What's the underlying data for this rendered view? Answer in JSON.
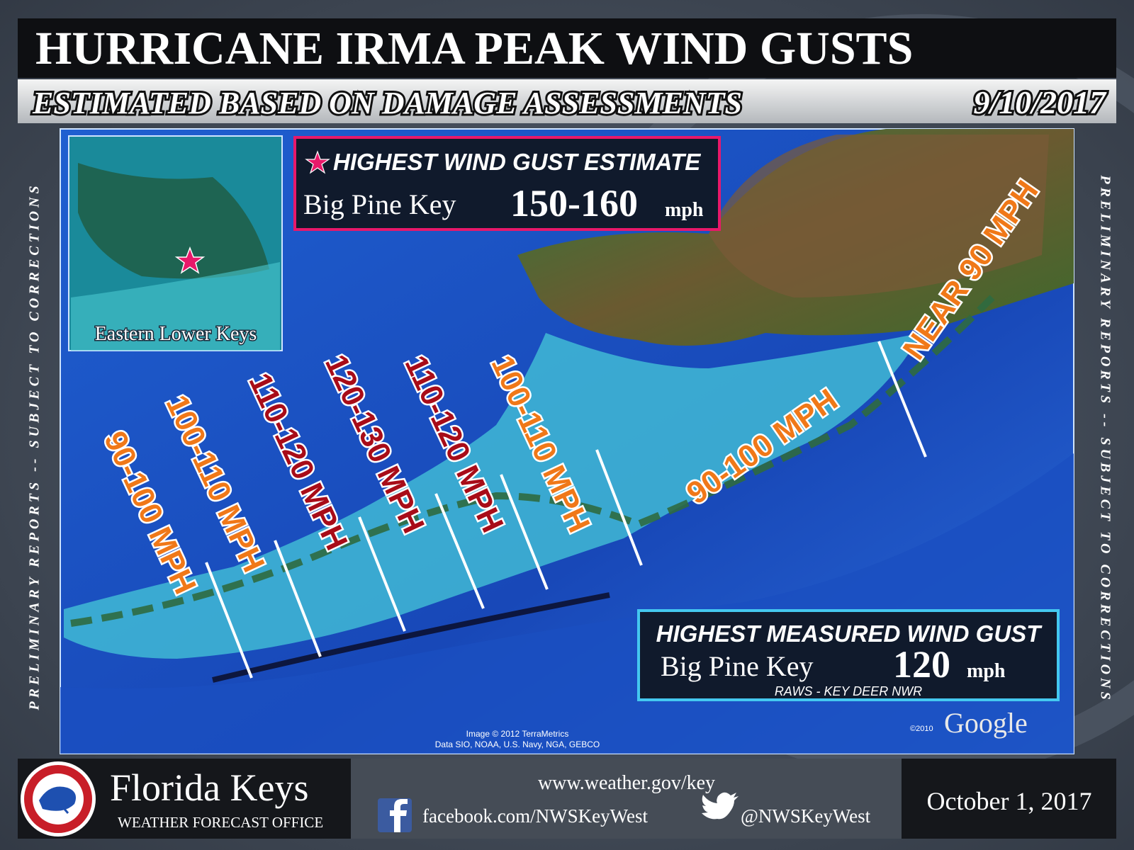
{
  "header": {
    "title": "HURRICANE IRMA PEAK WIND GUSTS",
    "subtitle": "ESTIMATED BASED ON DAMAGE ASSESSMENTS",
    "date": "9/10/2017"
  },
  "side_note": "PRELIMINARY REPORTS -- SUBJECT TO CORRECTIONS",
  "inset": {
    "label": "Eastern Lower Keys"
  },
  "estimate_box": {
    "title": "HIGHEST WIND GUST ESTIMATE",
    "location": "Big Pine Key",
    "value": "150-160",
    "unit": "mph"
  },
  "zones": [
    {
      "label": "90-100 MPH",
      "color": "#f07818"
    },
    {
      "label": "100-110 MPH",
      "color": "#f07818"
    },
    {
      "label": "110-120 MPH",
      "color": "#a80c18"
    },
    {
      "label": "120-130 MPH",
      "color": "#a80c18"
    },
    {
      "label": "110-120 MPH",
      "color": "#a80c18"
    },
    {
      "label": "100-110 MPH",
      "color": "#f07818"
    },
    {
      "label": "90-100 MPH",
      "color": "#f07818"
    },
    {
      "label": "NEAR 90 MPH",
      "color": "#f07818"
    }
  ],
  "measured_box": {
    "title": "HIGHEST MEASURED WIND GUST",
    "location": "Big Pine Key",
    "value": "120",
    "unit": "mph",
    "source": "RAWS  - KEY DEER NWR"
  },
  "credits": {
    "image": "Image © 2012 TerraMetrics",
    "data": "Data SIO, NOAA, U.S. Navy, NGA, GEBCO",
    "year": "©2010",
    "brand": "Google"
  },
  "footer": {
    "office": "Florida Keys",
    "office_sub": "WEATHER FORECAST OFFICE",
    "website": "www.weather.gov/key",
    "facebook": "facebook.com/NWSKeyWest",
    "twitter": "@NWSKeyWest",
    "date": "October 1, 2017"
  }
}
